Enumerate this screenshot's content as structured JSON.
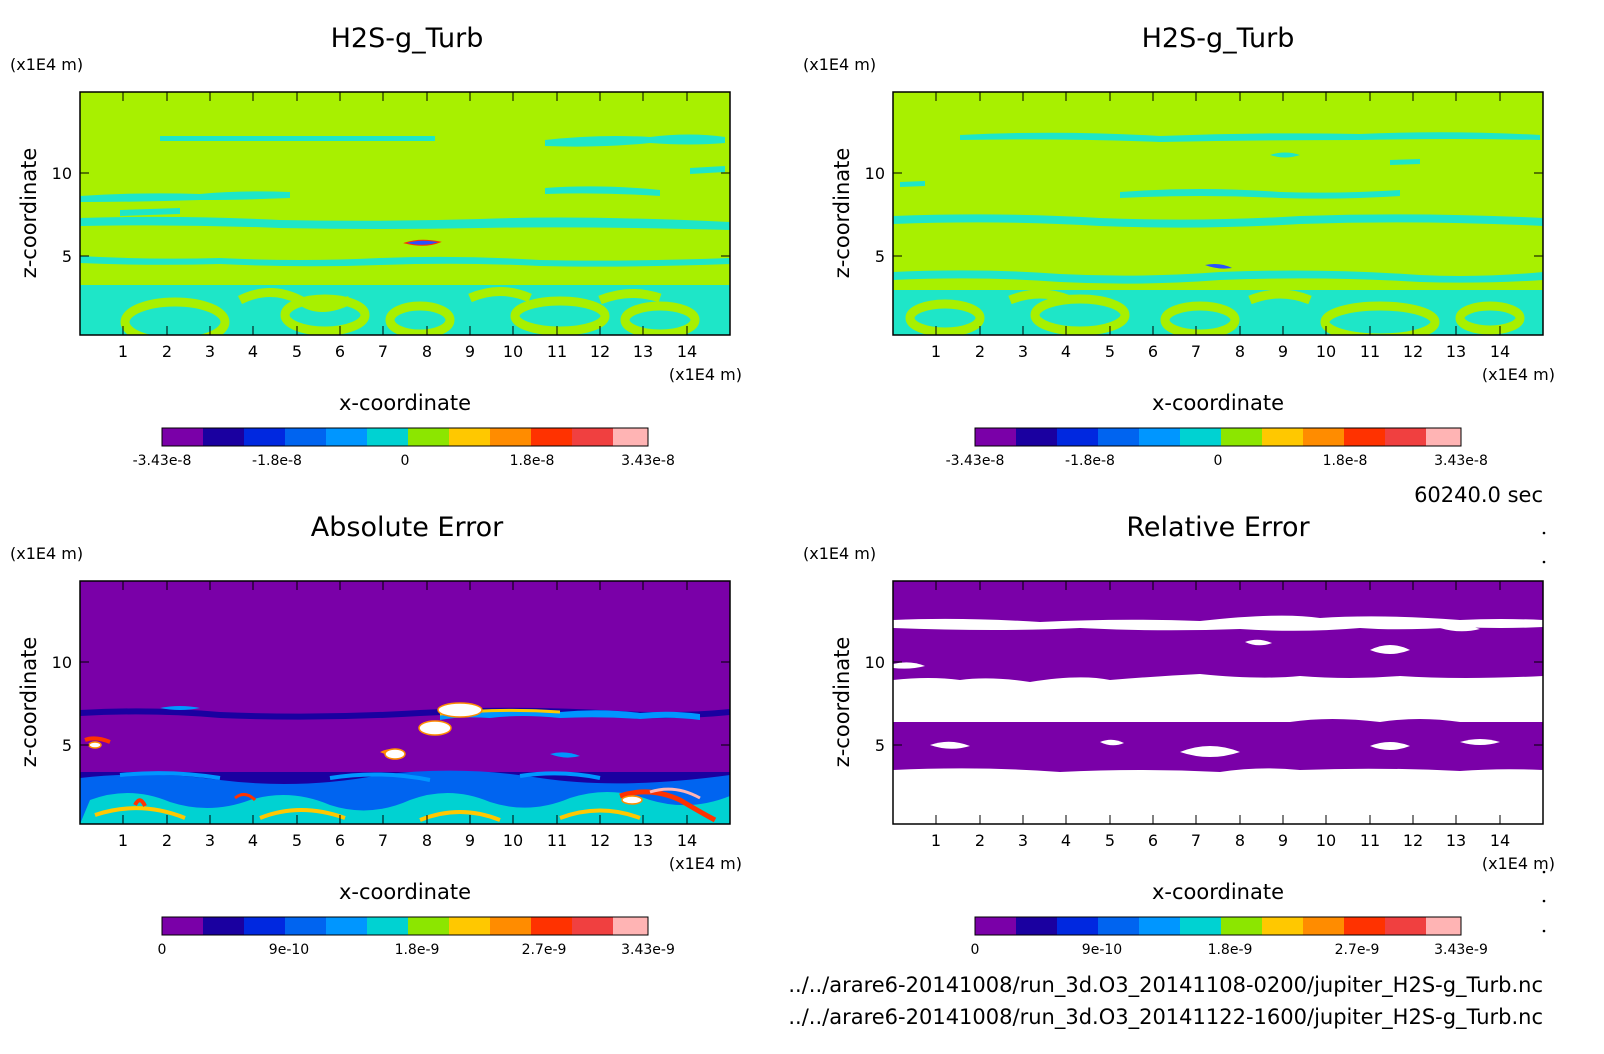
{
  "chart_data": [
    {
      "type": "heatmap",
      "title": "H2S-g_Turb",
      "xlabel": "x-coordinate",
      "ylabel": "z-coordinate",
      "x_unit": "(x1E4 m)",
      "z_unit": "(x1E4 m)",
      "xlim": [
        0,
        15
      ],
      "ylim": [
        0,
        14.5
      ],
      "x_ticks": [
        "1",
        "2",
        "3",
        "4",
        "5",
        "6",
        "7",
        "8",
        "9",
        "10",
        "11",
        "12",
        "13",
        "14"
      ],
      "y_ticks": [
        "5",
        "10"
      ],
      "colorbar": {
        "range": [
          -3.43e-08,
          3.43e-08
        ],
        "tick_labels": [
          "-3.43e-8",
          "-1.8e-8",
          "0",
          "1.8e-8",
          "3.43e-8"
        ],
        "colors": [
          "#7a00a8",
          "#1a00a0",
          "#0028e0",
          "#0064f0",
          "#0096ff",
          "#00d2d2",
          "#8ce600",
          "#ffc800",
          "#ff8c00",
          "#ff3200",
          "#f04040",
          "#ffb4b4"
        ]
      },
      "background_color": "#a8f000",
      "pattern_color": "#1ee6c8",
      "accent_color": "#2850ff"
    },
    {
      "type": "heatmap",
      "title": "H2S-g_Turb",
      "xlabel": "x-coordinate",
      "ylabel": "z-coordinate",
      "x_unit": "(x1E4 m)",
      "z_unit": "(x1E4 m)",
      "xlim": [
        0,
        15
      ],
      "ylim": [
        0,
        14.5
      ],
      "x_ticks": [
        "1",
        "2",
        "3",
        "4",
        "5",
        "6",
        "7",
        "8",
        "9",
        "10",
        "11",
        "12",
        "13",
        "14"
      ],
      "y_ticks": [
        "5",
        "10"
      ],
      "colorbar": {
        "range": [
          -3.43e-08,
          3.43e-08
        ],
        "tick_labels": [
          "-3.43e-8",
          "-1.8e-8",
          "0",
          "1.8e-8",
          "3.43e-8"
        ],
        "colors": [
          "#7a00a8",
          "#1a00a0",
          "#0028e0",
          "#0064f0",
          "#0096ff",
          "#00d2d2",
          "#8ce600",
          "#ffc800",
          "#ff8c00",
          "#ff3200",
          "#f04040",
          "#ffb4b4"
        ]
      },
      "background_color": "#a8f000",
      "pattern_color": "#1ee6c8",
      "accent_color": "#2850ff"
    },
    {
      "type": "heatmap",
      "title": "Absolute Error",
      "xlabel": "x-coordinate",
      "ylabel": "z-coordinate",
      "x_unit": "(x1E4 m)",
      "z_unit": "(x1E4 m)",
      "xlim": [
        0,
        15
      ],
      "ylim": [
        0,
        14.5
      ],
      "x_ticks": [
        "1",
        "2",
        "3",
        "4",
        "5",
        "6",
        "7",
        "8",
        "9",
        "10",
        "11",
        "12",
        "13",
        "14"
      ],
      "y_ticks": [
        "5",
        "10"
      ],
      "colorbar": {
        "range": [
          0,
          3.43e-09
        ],
        "tick_labels": [
          "0",
          "9e-10",
          "1.8e-9",
          "2.7e-9",
          "3.43e-9"
        ],
        "colors": [
          "#7a00a8",
          "#1a00a0",
          "#0028e0",
          "#0064f0",
          "#0096ff",
          "#00d2d2",
          "#8ce600",
          "#ffc800",
          "#ff8c00",
          "#ff3200",
          "#f04040",
          "#ffb4b4"
        ]
      },
      "background_color": "#7a00a8",
      "pattern_color": "#0064f0",
      "accent_color": "#ff3200"
    },
    {
      "type": "heatmap",
      "title": "Relative Error",
      "xlabel": "x-coordinate",
      "ylabel": "z-coordinate",
      "x_unit": "(x1E4 m)",
      "z_unit": "(x1E4 m)",
      "xlim": [
        0,
        15
      ],
      "ylim": [
        0,
        14.5
      ],
      "x_ticks": [
        "1",
        "2",
        "3",
        "4",
        "5",
        "6",
        "7",
        "8",
        "9",
        "10",
        "11",
        "12",
        "13",
        "14"
      ],
      "y_ticks": [
        "5",
        "10"
      ],
      "colorbar": {
        "range": [
          0,
          3.43e-09
        ],
        "tick_labels": [
          "0",
          "9e-10",
          "1.8e-9",
          "2.7e-9",
          "3.43e-9"
        ],
        "colors": [
          "#7a00a8",
          "#1a00a0",
          "#0028e0",
          "#0064f0",
          "#0096ff",
          "#00d2d2",
          "#8ce600",
          "#ffc800",
          "#ff8c00",
          "#ff3200",
          "#f04040",
          "#ffb4b4"
        ]
      },
      "background_color": "#7a00a8",
      "pattern_color": "#ffffff",
      "accent_color": "#ffffff"
    }
  ],
  "footer": {
    "time": "60240.0 sec",
    "file_1": "../../arare6-20141008/run_3d.O3_20141108-0200/jupiter_H2S-g_Turb.nc",
    "file_2": "../../arare6-20141008/run_3d.O3_20141122-1600/jupiter_H2S-g_Turb.nc"
  }
}
